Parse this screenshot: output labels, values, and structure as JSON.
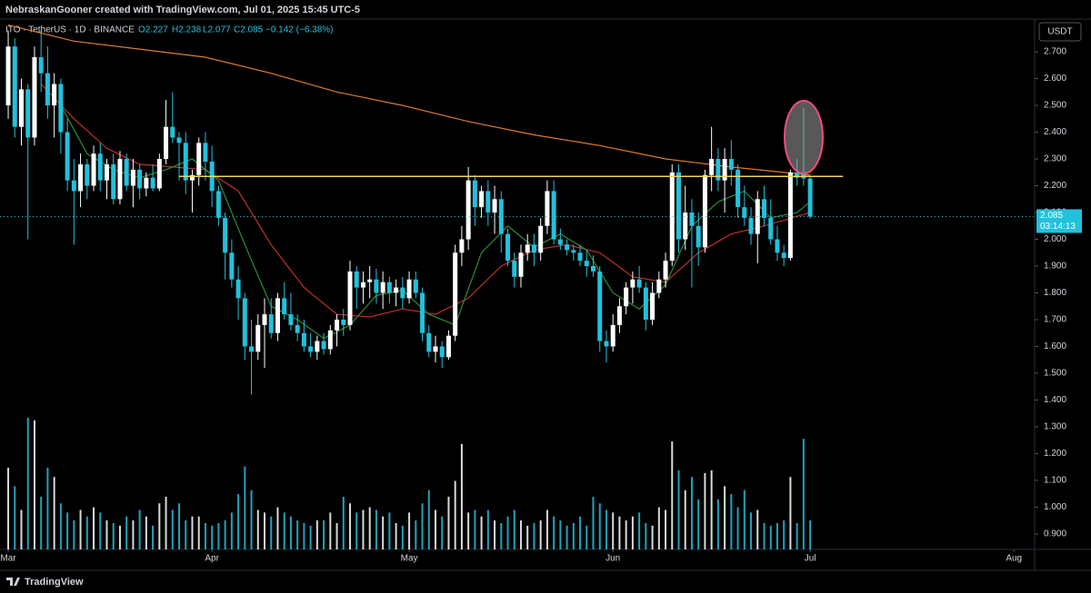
{
  "chart_data": {
    "type": "candlestick",
    "title": "NebraskanGooner created with TradingView.com, Jul 01, 2025 15:45 UTC-5",
    "legend": {
      "symbol": "ITO · TetherUS · 1D · BINANCE",
      "open": "O2.227",
      "high": "H2.238",
      "low": "L2.077",
      "close": "C2.085",
      "change": "−0.142 (−6.38%)"
    },
    "currency": "USDT",
    "countdown": "03:14:13",
    "brand": "TradingView",
    "up_color": "#ffffff",
    "down_color": "#22c1dc",
    "xlim": [
      -1.25,
      156.15
    ],
    "xticks": [
      {
        "value": 0,
        "label": "Mar"
      },
      {
        "value": 31,
        "label": "Apr"
      },
      {
        "value": 61,
        "label": "May"
      },
      {
        "value": 92,
        "label": "Jun"
      },
      {
        "value": 122,
        "label": "Jul"
      },
      {
        "value": 153,
        "label": "Aug"
      }
    ],
    "ylim": [
      0.842,
      2.819
    ],
    "yticks": [
      {
        "value": 0.9,
        "label": "0.900"
      },
      {
        "value": 1.0,
        "label": "1.000"
      },
      {
        "value": 1.1,
        "label": "1.100"
      },
      {
        "value": 1.2,
        "label": "1.200"
      },
      {
        "value": 1.3,
        "label": "1.300"
      },
      {
        "value": 1.4,
        "label": "1.400"
      },
      {
        "value": 1.5,
        "label": "1.500"
      },
      {
        "value": 1.6,
        "label": "1.600"
      },
      {
        "value": 1.7,
        "label": "1.700"
      },
      {
        "value": 1.8,
        "label": "1.800"
      },
      {
        "value": 1.9,
        "label": "1.900"
      },
      {
        "value": 2.0,
        "label": "2.000"
      },
      {
        "value": 2.1,
        "label": "2.100"
      },
      {
        "value": 2.2,
        "label": "2.200"
      },
      {
        "value": 2.3,
        "label": "2.300"
      },
      {
        "value": 2.4,
        "label": "2.400"
      },
      {
        "value": 2.5,
        "label": "2.500"
      },
      {
        "value": 2.6,
        "label": "2.600"
      },
      {
        "value": 2.7,
        "label": "2.700"
      }
    ],
    "candles": {
      "open": [
        2.5,
        2.72,
        2.42,
        2.56,
        2.38,
        2.68,
        2.62,
        2.5,
        2.58,
        2.4,
        2.22,
        2.18,
        2.28,
        2.2,
        2.32,
        2.22,
        2.28,
        2.15,
        2.3,
        2.2,
        2.26,
        2.19,
        2.23,
        2.19,
        2.3,
        2.42,
        2.38,
        2.36,
        2.22,
        2.24,
        2.36,
        2.29,
        2.18,
        2.08,
        1.95,
        1.85,
        1.78,
        1.6,
        1.58,
        1.68,
        1.72,
        1.65,
        1.78,
        1.72,
        1.68,
        1.65,
        1.6,
        1.58,
        1.62,
        1.59,
        1.66,
        1.7,
        1.68,
        1.88,
        1.82,
        1.84,
        1.85,
        1.8,
        1.84,
        1.8,
        1.82,
        1.78,
        1.85,
        1.8,
        1.65,
        1.58,
        1.6,
        1.56,
        1.64,
        1.95,
        2.0,
        2.22,
        2.12,
        2.18,
        2.1,
        2.15,
        2.02,
        1.92,
        1.86,
        1.95,
        1.98,
        1.95,
        2.05,
        2.18,
        2.0,
        1.98,
        1.96,
        1.95,
        1.92,
        1.9,
        1.88,
        1.62,
        1.6,
        1.68,
        1.75,
        1.82,
        1.85,
        1.82,
        1.7,
        1.8,
        1.85,
        1.92,
        2.25,
        2.0,
        2.1,
        2.05,
        1.97,
        2.24,
        2.3,
        2.22,
        2.3,
        2.26,
        2.12,
        2.08,
        2.02,
        2.15,
        2.08,
        2.0,
        1.95,
        1.93,
        2.25,
        2.25,
        2.227
      ],
      "high": [
        2.78,
        2.75,
        2.6,
        2.58,
        2.72,
        2.78,
        2.72,
        2.62,
        2.6,
        2.45,
        2.3,
        2.32,
        2.3,
        2.35,
        2.36,
        2.3,
        2.32,
        2.33,
        2.32,
        2.3,
        2.28,
        2.25,
        2.28,
        2.32,
        2.52,
        2.55,
        2.4,
        2.4,
        2.26,
        2.38,
        2.4,
        2.35,
        2.2,
        2.1,
        2.0,
        1.9,
        1.8,
        1.7,
        1.72,
        1.78,
        1.78,
        1.8,
        1.84,
        1.8,
        1.72,
        1.7,
        1.65,
        1.64,
        1.65,
        1.68,
        1.72,
        1.74,
        1.92,
        1.9,
        1.88,
        1.9,
        1.89,
        1.88,
        1.86,
        1.85,
        1.86,
        1.88,
        1.88,
        1.82,
        1.68,
        1.64,
        1.62,
        1.66,
        1.98,
        2.05,
        2.27,
        2.24,
        2.2,
        2.22,
        2.2,
        2.18,
        2.04,
        1.95,
        1.98,
        2.02,
        2.02,
        2.08,
        2.22,
        2.22,
        2.04,
        2.0,
        1.98,
        1.98,
        1.96,
        1.94,
        1.9,
        1.66,
        1.72,
        1.78,
        1.84,
        1.88,
        1.9,
        1.84,
        1.84,
        1.88,
        1.95,
        2.28,
        2.28,
        2.2,
        2.15,
        2.1,
        2.26,
        2.42,
        2.34,
        2.34,
        2.37,
        2.28,
        2.2,
        2.12,
        2.18,
        2.2,
        2.15,
        2.05,
        1.98,
        2.26,
        2.3,
        2.49,
        2.238
      ],
      "low": [
        2.45,
        2.38,
        2.35,
        2.0,
        2.35,
        2.55,
        2.45,
        2.38,
        2.32,
        2.18,
        1.98,
        2.12,
        2.15,
        2.18,
        2.18,
        2.15,
        2.13,
        2.13,
        2.18,
        2.12,
        2.15,
        2.16,
        2.18,
        2.18,
        2.28,
        2.36,
        2.22,
        2.17,
        2.1,
        2.2,
        2.22,
        2.12,
        2.05,
        1.85,
        1.82,
        1.7,
        1.55,
        1.42,
        1.55,
        1.52,
        1.63,
        1.62,
        1.7,
        1.66,
        1.62,
        1.58,
        1.56,
        1.55,
        1.57,
        1.57,
        1.6,
        1.64,
        1.66,
        1.74,
        1.76,
        1.78,
        1.76,
        1.74,
        1.76,
        1.75,
        1.74,
        1.76,
        1.78,
        1.62,
        1.56,
        1.54,
        1.52,
        1.55,
        1.62,
        1.9,
        1.96,
        2.05,
        2.08,
        2.05,
        2.02,
        1.95,
        1.9,
        1.82,
        1.82,
        1.92,
        1.9,
        1.92,
        2.02,
        1.98,
        1.96,
        1.94,
        1.92,
        1.9,
        1.86,
        1.86,
        1.58,
        1.54,
        1.58,
        1.65,
        1.72,
        1.76,
        1.8,
        1.66,
        1.68,
        1.78,
        1.82,
        1.9,
        1.95,
        1.96,
        1.82,
        1.9,
        1.95,
        2.18,
        2.18,
        2.1,
        2.2,
        2.08,
        2.05,
        1.98,
        1.91,
        2.05,
        1.98,
        1.92,
        1.9,
        1.92,
        2.2,
        2.2,
        2.077
      ],
      "close": [
        2.72,
        2.42,
        2.56,
        2.38,
        2.68,
        2.62,
        2.5,
        2.58,
        2.4,
        2.22,
        2.18,
        2.28,
        2.2,
        2.32,
        2.22,
        2.28,
        2.15,
        2.3,
        2.2,
        2.26,
        2.19,
        2.23,
        2.19,
        2.3,
        2.42,
        2.38,
        2.36,
        2.22,
        2.24,
        2.36,
        2.29,
        2.18,
        2.08,
        1.95,
        1.85,
        1.78,
        1.6,
        1.58,
        1.68,
        1.72,
        1.65,
        1.78,
        1.72,
        1.68,
        1.65,
        1.6,
        1.58,
        1.62,
        1.59,
        1.66,
        1.7,
        1.68,
        1.88,
        1.82,
        1.84,
        1.85,
        1.8,
        1.84,
        1.8,
        1.82,
        1.78,
        1.85,
        1.8,
        1.65,
        1.58,
        1.6,
        1.56,
        1.64,
        1.95,
        2.0,
        2.22,
        2.12,
        2.18,
        2.1,
        2.15,
        2.02,
        1.92,
        1.86,
        1.95,
        1.98,
        1.95,
        2.05,
        2.18,
        2.0,
        1.98,
        1.96,
        1.95,
        1.92,
        1.9,
        1.88,
        1.62,
        1.6,
        1.68,
        1.75,
        1.82,
        1.85,
        1.82,
        1.7,
        1.8,
        1.85,
        1.92,
        2.25,
        2.0,
        2.1,
        2.05,
        1.97,
        2.24,
        2.3,
        2.22,
        2.3,
        2.26,
        2.12,
        2.08,
        2.02,
        2.15,
        2.08,
        2.0,
        1.95,
        1.93,
        2.25,
        2.23,
        2.227,
        2.085
      ],
      "volume": [
        62,
        48,
        30,
        100,
        98,
        40,
        62,
        55,
        35,
        28,
        22,
        30,
        25,
        32,
        28,
        22,
        20,
        18,
        25,
        22,
        30,
        25,
        18,
        35,
        40,
        30,
        35,
        22,
        25,
        25,
        20,
        18,
        20,
        22,
        28,
        42,
        63,
        45,
        30,
        28,
        25,
        32,
        28,
        25,
        22,
        20,
        18,
        22,
        22,
        28,
        20,
        40,
        35,
        28,
        30,
        32,
        30,
        25,
        28,
        20,
        18,
        28,
        22,
        35,
        45,
        30,
        25,
        40,
        52,
        80,
        28,
        30,
        25,
        30,
        22,
        20,
        25,
        30,
        22,
        18,
        20,
        22,
        30,
        25,
        22,
        18,
        20,
        25,
        18,
        40,
        35,
        30,
        28,
        25,
        22,
        25,
        28,
        20,
        18,
        32,
        30,
        82,
        60,
        45,
        55,
        38,
        58,
        60,
        38,
        48,
        42,
        32,
        45,
        28,
        30,
        20,
        18,
        20,
        22,
        55,
        20,
        84,
        22
      ]
    },
    "moving_averages": [
      {
        "color": "#e07b2a",
        "x": [
          0,
          10,
          20,
          30,
          40,
          50,
          60,
          70,
          80,
          90,
          100,
          110,
          122
        ],
        "values": [
          2.8,
          2.74,
          2.71,
          2.68,
          2.62,
          2.55,
          2.5,
          2.44,
          2.39,
          2.35,
          2.3,
          2.27,
          2.24
        ]
      },
      {
        "color": "#c0302c",
        "x": [
          5,
          10,
          15,
          20,
          25,
          30,
          35,
          40,
          45,
          50,
          55,
          60,
          65,
          70,
          75,
          80,
          85,
          90,
          95,
          100,
          105,
          110,
          115,
          122
        ],
        "values": [
          2.58,
          2.45,
          2.34,
          2.28,
          2.27,
          2.26,
          2.18,
          1.98,
          1.82,
          1.72,
          1.71,
          1.74,
          1.72,
          1.78,
          1.9,
          1.96,
          1.98,
          1.95,
          1.86,
          1.84,
          1.95,
          2.02,
          2.05,
          2.1
        ]
      },
      {
        "color": "#2e8b3a",
        "x": [
          8,
          12,
          16,
          20,
          24,
          28,
          32,
          36,
          40,
          44,
          48,
          52,
          56,
          60,
          64,
          68,
          72,
          76,
          80,
          84,
          88,
          92,
          96,
          100,
          104,
          108,
          112,
          116,
          120,
          122
        ],
        "values": [
          2.5,
          2.32,
          2.26,
          2.23,
          2.26,
          2.3,
          2.22,
          1.98,
          1.75,
          1.7,
          1.63,
          1.68,
          1.79,
          1.81,
          1.72,
          1.68,
          1.95,
          2.05,
          1.97,
          2.02,
          1.96,
          1.8,
          1.74,
          1.83,
          2.05,
          2.14,
          2.18,
          2.08,
          2.1,
          2.14
        ]
      }
    ],
    "hline": {
      "value": 2.235,
      "x": [
        26,
        127
      ],
      "color": "#f5cf63"
    }
  }
}
